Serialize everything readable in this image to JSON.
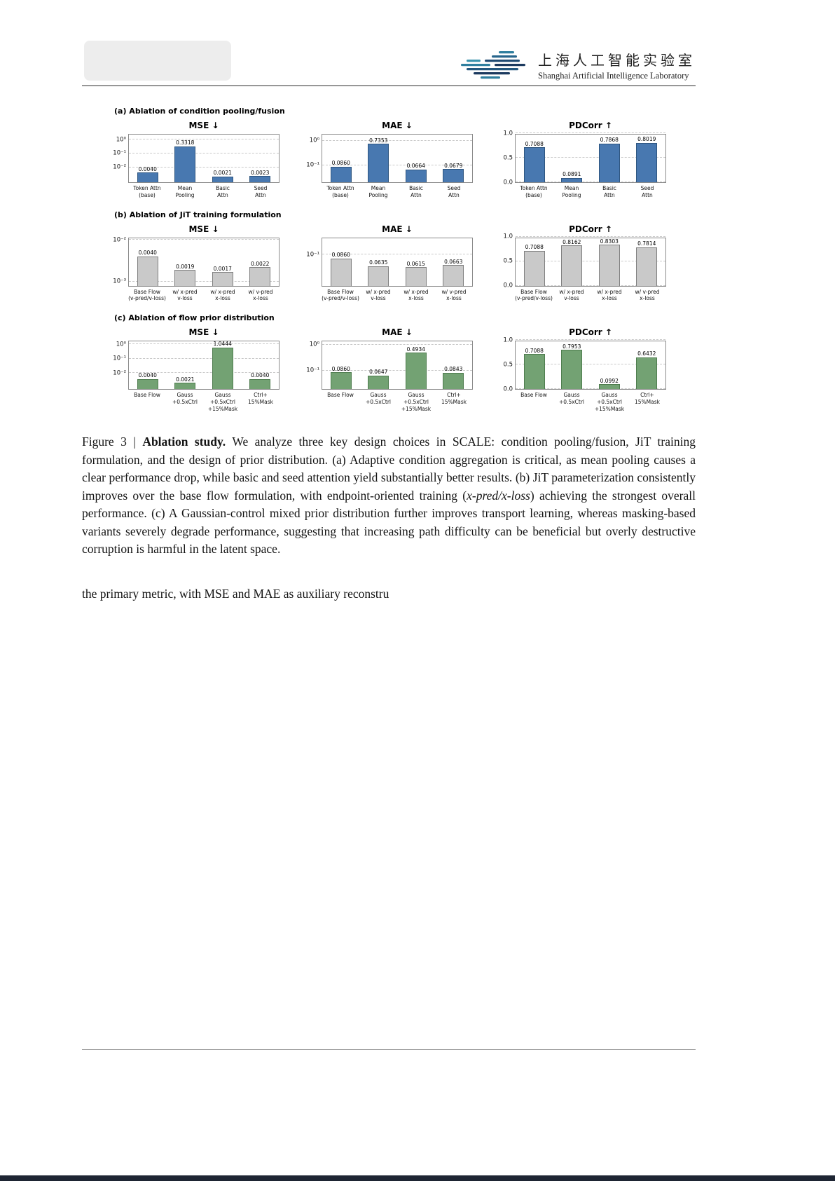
{
  "header": {
    "logo_cn": "上海人工智能实验室",
    "logo_en": "Shanghai Artificial Intelligence Laboratory"
  },
  "figure": {
    "panels": [
      {
        "label": "(a) Ablation of condition pooling/fusion",
        "color": "#4878B0",
        "edge": "#2E557F",
        "categories": [
          [
            "Token Attn",
            "(base)"
          ],
          [
            "Mean",
            "Pooling"
          ],
          [
            "Basic",
            "Attn"
          ],
          [
            "Seed",
            "Attn"
          ]
        ],
        "charts": [
          {
            "type": "bar",
            "title": "MSE",
            "arrow": "↓",
            "scale": "log",
            "ylim": [
              0.0008,
              3
            ],
            "ticks": [
              {
                "value": 1,
                "label": "10⁰"
              },
              {
                "value": 0.1,
                "label": "10⁻¹"
              },
              {
                "value": 0.01,
                "label": "10⁻²"
              }
            ],
            "values": [
              0.004,
              0.3318,
              0.0021,
              0.0023
            ],
            "value_labels": [
              "0.0040",
              "0.3318",
              "0.0021",
              "0.0023"
            ]
          },
          {
            "type": "bar",
            "title": "MAE",
            "arrow": "↓",
            "scale": "log",
            "ylim": [
              0.02,
              2
            ],
            "ticks": [
              {
                "value": 1,
                "label": "10⁰"
              },
              {
                "value": 0.1,
                "label": "10⁻¹"
              }
            ],
            "values": [
              0.086,
              0.7353,
              0.0664,
              0.0679
            ],
            "value_labels": [
              "0.0860",
              "0.7353",
              "0.0664",
              "0.0679"
            ]
          },
          {
            "type": "bar",
            "title": "PDCorr",
            "arrow": "↑",
            "scale": "linear",
            "ylim": [
              0,
              1
            ],
            "ticks": [
              {
                "value": 1,
                "label": "1.0"
              },
              {
                "value": 0.5,
                "label": "0.5"
              },
              {
                "value": 0,
                "label": "0.0"
              }
            ],
            "values": [
              0.7088,
              0.0891,
              0.7868,
              0.8019
            ],
            "value_labels": [
              "0.7088",
              "0.0891",
              "0.7868",
              "0.8019"
            ]
          }
        ]
      },
      {
        "label": "(b) Ablation of JiT training formulation",
        "color": "#C9C9C9",
        "edge": "#7F7F7F",
        "categories": [
          [
            "Base Flow",
            "(v-pred/v-loss)"
          ],
          [
            "w/ x-pred",
            "v-loss"
          ],
          [
            "w/ x-pred",
            "x-loss"
          ],
          [
            "w/ v-pred",
            "x-loss"
          ]
        ],
        "charts": [
          {
            "type": "bar",
            "title": "MSE",
            "arrow": "↓",
            "scale": "log",
            "ylim": [
              0.0008,
              0.012
            ],
            "ticks": [
              {
                "value": 0.01,
                "label": "10⁻²"
              },
              {
                "value": 0.001,
                "label": "10⁻³"
              }
            ],
            "values": [
              0.004,
              0.0019,
              0.0017,
              0.0022
            ],
            "value_labels": [
              "0.0040",
              "0.0019",
              "0.0017",
              "0.0022"
            ]
          },
          {
            "type": "bar",
            "title": "MAE",
            "arrow": "↓",
            "scale": "log",
            "ylim": [
              0.03,
              0.2
            ],
            "ticks": [
              {
                "value": 0.1,
                "label": "10⁻¹"
              }
            ],
            "values": [
              0.086,
              0.0635,
              0.0615,
              0.0663
            ],
            "value_labels": [
              "0.0860",
              "0.0635",
              "0.0615",
              "0.0663"
            ]
          },
          {
            "type": "bar",
            "title": "PDCorr",
            "arrow": "↑",
            "scale": "linear",
            "ylim": [
              0,
              1
            ],
            "ticks": [
              {
                "value": 1,
                "label": "1.0"
              },
              {
                "value": 0.5,
                "label": "0.5"
              },
              {
                "value": 0,
                "label": "0.0"
              }
            ],
            "values": [
              0.7088,
              0.8162,
              0.8303,
              0.7814
            ],
            "value_labels": [
              "0.7088",
              "0.8162",
              "0.8303",
              "0.7814"
            ]
          }
        ]
      },
      {
        "label": "(c) Ablation of flow prior distribution",
        "color": "#73A273",
        "edge": "#4E7C4E",
        "categories": [
          [
            "Base Flow"
          ],
          [
            "Gauss",
            "+0.5xCtrl"
          ],
          [
            "Gauss",
            "+0.5xCtrl",
            "+15%Mask"
          ],
          [
            "Ctrl+",
            "15%Mask"
          ]
        ],
        "charts": [
          {
            "type": "bar",
            "title": "MSE",
            "arrow": "↓",
            "scale": "log",
            "ylim": [
              0.0008,
              2
            ],
            "ticks": [
              {
                "value": 1,
                "label": "10⁰"
              },
              {
                "value": 0.1,
                "label": "10⁻¹"
              },
              {
                "value": 0.01,
                "label": "10⁻²"
              }
            ],
            "values": [
              0.004,
              0.0021,
              1.0444,
              0.004
            ],
            "value_labels": [
              "0.0040",
              "0.0021",
              "1.0444",
              "0.0040"
            ]
          },
          {
            "type": "bar",
            "title": "MAE",
            "arrow": "↓",
            "scale": "log",
            "ylim": [
              0.02,
              1.5
            ],
            "ticks": [
              {
                "value": 1,
                "label": "10⁰"
              },
              {
                "value": 0.1,
                "label": "10⁻¹"
              }
            ],
            "values": [
              0.086,
              0.0647,
              0.4934,
              0.0843
            ],
            "value_labels": [
              "0.0860",
              "0.0647",
              "0.4934",
              "0.0843"
            ]
          },
          {
            "type": "bar",
            "title": "PDCorr",
            "arrow": "↑",
            "scale": "linear",
            "ylim": [
              0,
              1
            ],
            "ticks": [
              {
                "value": 1,
                "label": "1.0"
              },
              {
                "value": 0.5,
                "label": "0.5"
              },
              {
                "value": 0,
                "label": "0.0"
              }
            ],
            "values": [
              0.7088,
              0.7953,
              0.0992,
              0.6432
            ],
            "value_labels": [
              "0.7088",
              "0.7953",
              "0.0992",
              "0.6432"
            ]
          }
        ]
      }
    ]
  },
  "caption": {
    "prefix": "Figure 3 | ",
    "bold": "Ablation study.",
    "body1": " We analyze three key design choices in SCALE: condition pooling/fusion, JiT training formulation, and the design of prior distribution. (a) Adaptive condition aggregation is critical, as mean pooling causes a clear performance drop, while basic and seed attention yield substantially better results. (b) JiT parameterization consistently improves over the base flow formulation, with endpoint-oriented training (",
    "italic": "x-pred/x-loss",
    "body2": ") achieving the strongest overall performance. (c) A Gaussian-control mixed prior distribution further improves transport learning, whereas masking-based variants severely degrade performance, suggesting that increasing path difficulty can be beneficial but overly destructive corruption is harmful in the latent space."
  },
  "body_text": "the primary metric, with MSE and MAE as auxiliary reconstru"
}
